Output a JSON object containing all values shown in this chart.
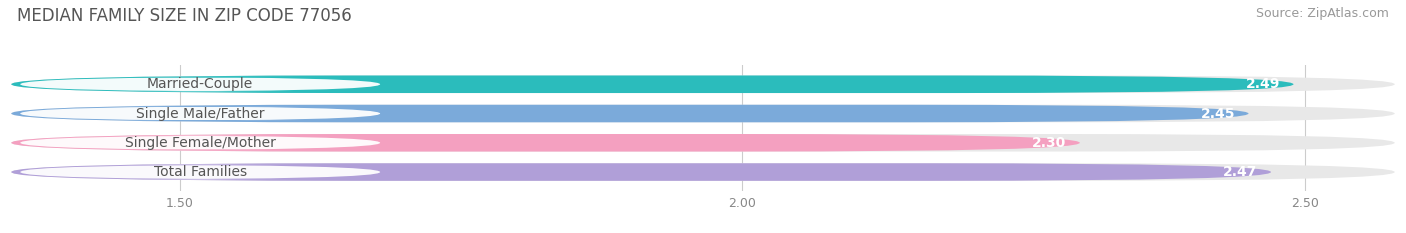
{
  "title": "MEDIAN FAMILY SIZE IN ZIP CODE 77056",
  "source": "Source: ZipAtlas.com",
  "categories": [
    "Married-Couple",
    "Single Male/Father",
    "Single Female/Mother",
    "Total Families"
  ],
  "values": [
    2.49,
    2.45,
    2.3,
    2.47
  ],
  "bar_colors": [
    "#2bbcbc",
    "#7baada",
    "#f4a0c0",
    "#b09fd8"
  ],
  "xlim_left": 1.35,
  "xlim_right": 2.58,
  "data_min": 1.35,
  "data_max": 2.58,
  "xticks": [
    1.5,
    2.0,
    2.5
  ],
  "background_color": "#ffffff",
  "track_color": "#e8e8e8",
  "title_fontsize": 12,
  "source_fontsize": 9,
  "label_fontsize": 10,
  "value_fontsize": 10,
  "bar_height": 0.6,
  "title_color": "#555555",
  "source_color": "#999999",
  "label_color": "#555555"
}
